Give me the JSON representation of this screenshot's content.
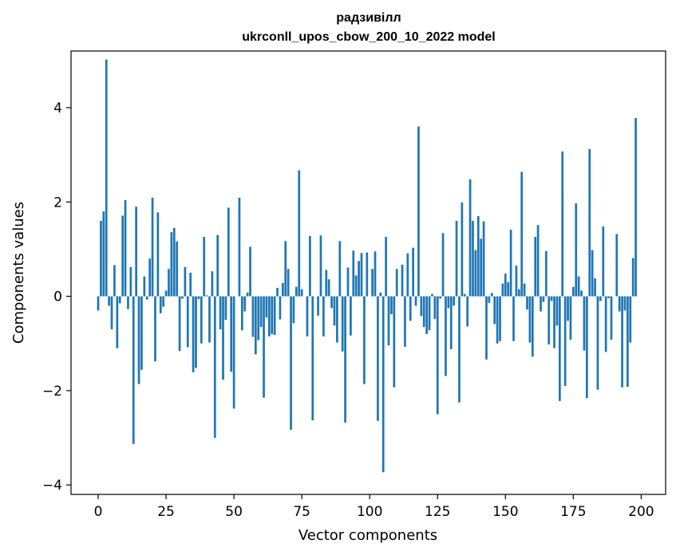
{
  "chart_data": {
    "type": "bar",
    "title_line1": "радзивілл",
    "title_line2": "ukrconll_upos_cbow_200_10_2022 model",
    "xlabel": "Vector components",
    "ylabel": "Components values",
    "xlim": [
      -10,
      209
    ],
    "ylim": [
      -4.2,
      5.2
    ],
    "xticks": [
      0,
      25,
      50,
      75,
      100,
      125,
      150,
      175,
      200
    ],
    "yticks": [
      -4,
      -2,
      0,
      2,
      4
    ],
    "ytick_labels": [
      "−4",
      "−2",
      "0",
      "2",
      "4"
    ],
    "grid": false,
    "bar_color": "#1f77b4",
    "values": [
      -0.3,
      1.6,
      1.8,
      5.02,
      -0.2,
      -0.7,
      0.66,
      -1.1,
      -0.15,
      1.71,
      2.04,
      -0.27,
      0.62,
      -3.13,
      1.9,
      -1.86,
      -1.56,
      0.42,
      -0.07,
      0.8,
      2.09,
      -1.38,
      1.78,
      -0.36,
      -0.22,
      0.12,
      0.58,
      1.36,
      1.45,
      1.16,
      -1.16,
      -0.05,
      0.62,
      -1.08,
      0.5,
      -1.61,
      -1.52,
      -0.06,
      -1.0,
      1.26,
      0.02,
      -0.98,
      0.53,
      -3.0,
      1.3,
      -0.7,
      -1.77,
      -0.5,
      1.88,
      -1.6,
      -2.38,
      0.0,
      2.09,
      -0.72,
      -0.32,
      0.08,
      1.05,
      -0.86,
      -1.23,
      -0.93,
      -0.65,
      -2.15,
      -0.45,
      -0.85,
      -0.8,
      -0.82,
      0.18,
      -0.49,
      0.28,
      1.17,
      0.58,
      -2.83,
      -0.57,
      0.2,
      2.67,
      0.15,
      0.0,
      -0.85,
      1.28,
      -2.63,
      0.0,
      -0.41,
      1.29,
      -0.85,
      0.56,
      0.36,
      -0.25,
      -0.62,
      -0.98,
      1.17,
      -1.17,
      -2.68,
      0.61,
      -0.83,
      0.97,
      0.44,
      0.75,
      0.92,
      -1.86,
      0.93,
      0.0,
      0.58,
      0.95,
      -2.64,
      0.08,
      -3.73,
      1.26,
      -1.04,
      -0.38,
      -1.93,
      0.58,
      0.0,
      0.67,
      -1.07,
      0.91,
      -0.52,
      1.03,
      -0.2,
      3.6,
      -0.42,
      -0.65,
      -0.8,
      -0.72,
      0.05,
      -0.48,
      -2.5,
      -0.05,
      1.34,
      -1.69,
      -0.25,
      -1.12,
      -0.2,
      1.6,
      -2.25,
      1.99,
      0.05,
      -0.64,
      2.48,
      1.6,
      0.98,
      1.7,
      1.22,
      1.59,
      -1.34,
      -0.14,
      0.07,
      -0.59,
      -1.0,
      -0.95,
      0.27,
      0.48,
      0.3,
      1.41,
      -0.95,
      0.65,
      0.15,
      2.64,
      0.27,
      -0.28,
      -0.98,
      -1.28,
      1.26,
      1.51,
      -0.32,
      -0.12,
      0.96,
      -1.02,
      -0.1,
      -1.1,
      -0.62,
      -2.22,
      3.07,
      -1.9,
      -0.52,
      -0.92,
      0.2,
      1.97,
      0.42,
      0.12,
      -1.15,
      -2.16,
      3.12,
      0.98,
      0.38,
      -1.98,
      -0.1,
      1.48,
      -1.18,
      -0.04,
      -0.92,
      0.0,
      1.32,
      -0.32,
      -1.93,
      -0.3,
      -1.92,
      -0.98,
      0.81,
      3.78
    ]
  }
}
